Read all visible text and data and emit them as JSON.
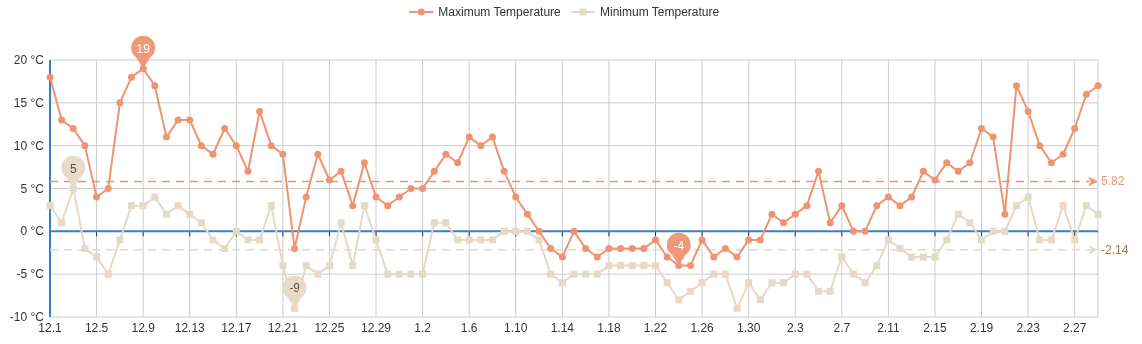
{
  "chart_data": {
    "type": "line",
    "categories": [
      "12.1",
      null,
      null,
      null,
      "12.5",
      null,
      null,
      null,
      "12.9",
      null,
      null,
      null,
      "12.13",
      null,
      null,
      null,
      "12.17",
      null,
      null,
      null,
      "12.21",
      null,
      null,
      null,
      "12.25",
      null,
      null,
      null,
      "12.29",
      null,
      null,
      null,
      "1.2",
      null,
      null,
      null,
      "1.6",
      null,
      null,
      null,
      "1.10",
      null,
      null,
      null,
      "1.14",
      null,
      null,
      null,
      "1.18",
      null,
      null,
      null,
      "1.22",
      null,
      null,
      null,
      "1.26",
      null,
      null,
      null,
      "1.30",
      null,
      null,
      null,
      "2.3",
      null,
      null,
      null,
      "2.7",
      null,
      null,
      null,
      "2.11",
      null,
      null,
      null,
      "2.15",
      null,
      null,
      null,
      "2.19",
      null,
      null,
      null,
      "2.23",
      null,
      null,
      null,
      "2.27",
      null,
      null
    ],
    "series": [
      {
        "name": "Maximum Temperature",
        "color": "#ee9471",
        "marker": "circle",
        "values": [
          18,
          13,
          12,
          10,
          4,
          5,
          15,
          18,
          19,
          17,
          11,
          13,
          13,
          10,
          9,
          12,
          10,
          7,
          14,
          10,
          9,
          -2,
          4,
          9,
          6,
          7,
          3,
          8,
          4,
          3,
          4,
          5,
          5,
          7,
          9,
          8,
          11,
          10,
          11,
          7,
          4,
          2,
          0,
          -2,
          -3,
          0,
          -2,
          -3,
          -2,
          -2,
          -2,
          -2,
          -1,
          -3,
          -4,
          -4,
          -1,
          -3,
          -2,
          -3,
          -1,
          -1,
          2,
          1,
          2,
          3,
          7,
          1,
          3,
          0,
          0,
          3,
          4,
          3,
          4,
          7,
          6,
          8,
          7,
          8,
          12,
          11,
          2,
          17,
          14,
          10,
          8,
          9,
          12,
          16,
          17
        ]
      },
      {
        "name": "Minimum Temperature",
        "color": "#e6d9c6",
        "marker": "square",
        "values": [
          3,
          1,
          5,
          -2,
          -3,
          -5,
          -1,
          3,
          3,
          4,
          2,
          3,
          2,
          1,
          -1,
          -2,
          0,
          -1,
          -1,
          3,
          -4,
          -9,
          -4,
          -5,
          -4,
          1,
          -4,
          3,
          -1,
          -5,
          -5,
          -5,
          -5,
          1,
          1,
          -1,
          -1,
          -1,
          -1,
          0,
          0,
          0,
          -1,
          -5,
          -6,
          -5,
          -5,
          -5,
          -4,
          -4,
          -4,
          -4,
          -4,
          -6,
          -8,
          -7,
          -6,
          -5,
          -5,
          -9,
          -6,
          -8,
          -6,
          -6,
          -5,
          -5,
          -7,
          -7,
          -3,
          -5,
          -6,
          -4,
          -1,
          -2,
          -3,
          -3,
          -3,
          -1,
          2,
          1,
          -1,
          0,
          0,
          3,
          4,
          -1,
          -1,
          3,
          -1,
          3,
          2
        ]
      }
    ],
    "ylim": [
      -10,
      20
    ],
    "yticks": [
      {
        "value": -10,
        "label": "-10 °C"
      },
      {
        "value": -5,
        "label": "-5 °C"
      },
      {
        "value": 0,
        "label": "0 °C"
      },
      {
        "value": 5,
        "label": "5 °C"
      },
      {
        "value": 10,
        "label": "10 °C"
      },
      {
        "value": 15,
        "label": "15 °C"
      },
      {
        "value": 20,
        "label": "20 °C"
      }
    ],
    "ref_lines": [
      {
        "axis": "y",
        "value": 0,
        "color": "#3a80c0",
        "line_style": "solid"
      },
      {
        "axis": "y",
        "value": 5.82,
        "label": "5.82",
        "color": "#ee9471",
        "line_style": "dashed"
      },
      {
        "axis": "y",
        "value": -2.14,
        "label": "-2.14",
        "color": "#e6d9c6",
        "line_style": "dashed"
      }
    ],
    "annotations": [
      {
        "text": "19",
        "x": "12.9",
        "y": 19
      },
      {
        "text": "-4",
        "y": -4
      },
      {
        "text": "5",
        "y": 5
      },
      {
        "text": "-9",
        "y": -9
      }
    ],
    "grid": true,
    "legend": "top"
  }
}
